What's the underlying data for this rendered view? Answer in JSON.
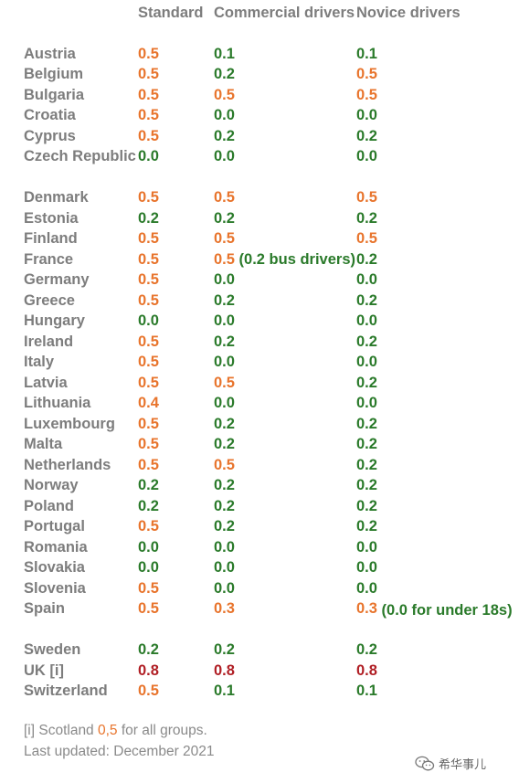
{
  "headers": {
    "standard": "Standard",
    "commercial": "Commercial drivers",
    "novice": "Novice drivers"
  },
  "rows": [
    {
      "country": "Austria",
      "standard": "0.5",
      "standard_color": "orange",
      "commercial": "0.1",
      "commercial_color": "green",
      "novice": "0.1",
      "novice_color": "green"
    },
    {
      "country": "Belgium",
      "standard": "0.5",
      "standard_color": "orange",
      "commercial": "0.2",
      "commercial_color": "green",
      "novice": "0.5",
      "novice_color": "orange"
    },
    {
      "country": "Bulgaria",
      "standard": "0.5",
      "standard_color": "orange",
      "commercial": "0.5",
      "commercial_color": "orange",
      "novice": "0.5",
      "novice_color": "orange"
    },
    {
      "country": "Croatia",
      "standard": "0.5",
      "standard_color": "orange",
      "commercial": "0.0",
      "commercial_color": "green",
      "novice": "0.0",
      "novice_color": "green"
    },
    {
      "country": "Cyprus",
      "standard": "0.5",
      "standard_color": "orange",
      "commercial": "0.2",
      "commercial_color": "green",
      "novice": "0.2",
      "novice_color": "green"
    },
    {
      "country": "Czech Republic",
      "standard": "0.0",
      "standard_color": "green",
      "commercial": "0.0",
      "commercial_color": "green",
      "novice": "0.0",
      "novice_color": "green"
    },
    {
      "country": "Denmark",
      "standard": "0.5",
      "standard_color": "orange",
      "commercial": "0.5",
      "commercial_color": "orange",
      "novice": "0.5",
      "novice_color": "orange"
    },
    {
      "country": "Estonia",
      "standard": "0.2",
      "standard_color": "green",
      "commercial": "0.2",
      "commercial_color": "green",
      "novice": "0.2",
      "novice_color": "green"
    },
    {
      "country": "Finland",
      "standard": "0.5",
      "standard_color": "orange",
      "commercial": "0.5",
      "commercial_color": "orange",
      "novice": "0.5",
      "novice_color": "orange"
    },
    {
      "country": "France",
      "standard": "0.5",
      "standard_color": "orange",
      "commercial": "0.5",
      "commercial_color": "orange",
      "commercial_note": "(0.2 bus drivers)",
      "novice": "0.2",
      "novice_color": "green"
    },
    {
      "country": "Germany",
      "standard": "0.5",
      "standard_color": "orange",
      "commercial": "0.0",
      "commercial_color": "green",
      "novice": "0.0",
      "novice_color": "green"
    },
    {
      "country": "Greece",
      "standard": "0.5",
      "standard_color": "orange",
      "commercial": "0.2",
      "commercial_color": "green",
      "novice": "0.2",
      "novice_color": "green"
    },
    {
      "country": "Hungary",
      "standard": "0.0",
      "standard_color": "green",
      "commercial": "0.0",
      "commercial_color": "green",
      "novice": "0.0",
      "novice_color": "green"
    },
    {
      "country": "Ireland",
      "standard": "0.5",
      "standard_color": "orange",
      "commercial": "0.2",
      "commercial_color": "green",
      "novice": "0.2",
      "novice_color": "green"
    },
    {
      "country": "Italy",
      "standard": "0.5",
      "standard_color": "orange",
      "commercial": "0.0",
      "commercial_color": "green",
      "novice": "0.0",
      "novice_color": "green"
    },
    {
      "country": "Latvia",
      "standard": "0.5",
      "standard_color": "orange",
      "commercial": "0.5",
      "commercial_color": "orange",
      "novice": "0.2",
      "novice_color": "green"
    },
    {
      "country": "Lithuania",
      "standard": "0.4",
      "standard_color": "orange",
      "commercial": "0.0",
      "commercial_color": "green",
      "novice": "0.0",
      "novice_color": "green"
    },
    {
      "country": "Luxembourg",
      "standard": "0.5",
      "standard_color": "orange",
      "commercial": "0.2",
      "commercial_color": "green",
      "novice": "0.2",
      "novice_color": "green"
    },
    {
      "country": "Malta",
      "standard": "0.5",
      "standard_color": "orange",
      "commercial": "0.2",
      "commercial_color": "green",
      "novice": "0.2",
      "novice_color": "green"
    },
    {
      "country": "Netherlands",
      "standard": "0.5",
      "standard_color": "orange",
      "commercial": "0.5",
      "commercial_color": "orange",
      "novice": "0.2",
      "novice_color": "green"
    },
    {
      "country": "Norway",
      "standard": "0.2",
      "standard_color": "green",
      "commercial": "0.2",
      "commercial_color": "green",
      "novice": "0.2",
      "novice_color": "green"
    },
    {
      "country": "Poland",
      "standard": "0.2",
      "standard_color": "green",
      "commercial": "0.2",
      "commercial_color": "green",
      "novice": "0.2",
      "novice_color": "green"
    },
    {
      "country": "Portugal",
      "standard": "0.5",
      "standard_color": "orange",
      "commercial": "0.2",
      "commercial_color": "green",
      "novice": "0.2",
      "novice_color": "green"
    },
    {
      "country": "Romania",
      "standard": "0.0",
      "standard_color": "green",
      "commercial": "0.0",
      "commercial_color": "green",
      "novice": "0.0",
      "novice_color": "green"
    },
    {
      "country": "Slovakia",
      "standard": "0.0",
      "standard_color": "green",
      "commercial": "0.0",
      "commercial_color": "green",
      "novice": "0.0",
      "novice_color": "green"
    },
    {
      "country": "Slovenia",
      "standard": "0.5",
      "standard_color": "orange",
      "commercial": "0.0",
      "commercial_color": "green",
      "novice": "0.0",
      "novice_color": "green"
    },
    {
      "country": "Spain",
      "standard": "0.5",
      "standard_color": "orange",
      "commercial": "0.3",
      "commercial_color": "orange",
      "novice": "0.3",
      "novice_color": "orange",
      "novice_note": "(0.0 for under 18s)"
    },
    {
      "country": "Sweden",
      "standard": "0.2",
      "standard_color": "green",
      "commercial": "0.2",
      "commercial_color": "green",
      "novice": "0.2",
      "novice_color": "green"
    },
    {
      "country": "UK [i]",
      "standard": "0.8",
      "standard_color": "red",
      "commercial": "0.8",
      "commercial_color": "red",
      "novice": "0.8",
      "novice_color": "red"
    },
    {
      "country": "Switzerland",
      "standard": "0.5",
      "standard_color": "orange",
      "commercial": "0.1",
      "commercial_color": "green",
      "novice": "0.1",
      "novice_color": "green"
    }
  ],
  "footnote": {
    "prefix": "[i] Scotland ",
    "value": "0,5",
    "suffix": " for all groups."
  },
  "last_updated": "Last updated: December 2021",
  "watermark": {
    "text": "希华事儿",
    "icon": "wechat-icon"
  },
  "colors": {
    "orange": "#e8742c",
    "green": "#2a7a2a",
    "red": "#b01e24",
    "label": "#7d7d7d"
  }
}
